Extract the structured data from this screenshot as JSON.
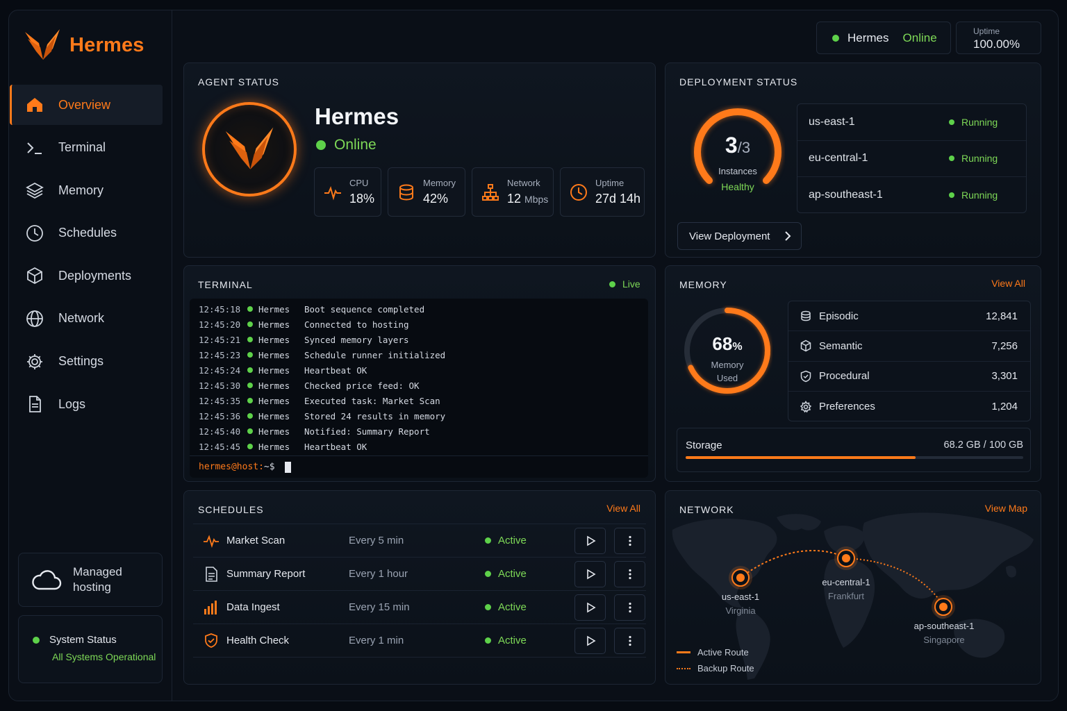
{
  "app": {
    "name": "Hermes"
  },
  "colors": {
    "accent": "#ff7a1a",
    "success": "#7ed957",
    "bg": "#070b12"
  },
  "sidebar": {
    "items": [
      {
        "label": "Overview",
        "icon": "home-icon",
        "active": true
      },
      {
        "label": "Terminal",
        "icon": "terminal-icon"
      },
      {
        "label": "Memory",
        "icon": "layers-icon"
      },
      {
        "label": "Schedules",
        "icon": "clock-icon"
      },
      {
        "label": "Deployments",
        "icon": "box-icon"
      },
      {
        "label": "Network",
        "icon": "globe-icon"
      },
      {
        "label": "Settings",
        "icon": "gear-icon"
      },
      {
        "label": "Logs",
        "icon": "file-icon"
      }
    ],
    "hosting": {
      "label": "Managed hosting",
      "icon": "cloud-icon"
    },
    "system": {
      "title": "System Status",
      "status": "All Systems Operational"
    }
  },
  "header": {
    "agent": "Hermes",
    "status": "Online",
    "uptime_label": "Uptime",
    "uptime_value": "100.00%"
  },
  "agent_status": {
    "title": "AGENT STATUS",
    "name": "Hermes",
    "status": "Online",
    "metrics": [
      {
        "label": "CPU",
        "value": "18%",
        "unit": "",
        "icon": "pulse-icon"
      },
      {
        "label": "Memory",
        "value": "42%",
        "unit": "",
        "icon": "database-icon"
      },
      {
        "label": "Network",
        "value": "12",
        "unit": "Mbps",
        "icon": "network-icon"
      },
      {
        "label": "Uptime",
        "value": "27d 14h",
        "unit": "",
        "icon": "clock-icon"
      }
    ]
  },
  "deployment": {
    "title": "DEPLOYMENT STATUS",
    "running": "3",
    "total": "/3",
    "running_count": 3,
    "total_count": 3,
    "label": "Instances",
    "health": "Healthy",
    "regions": [
      {
        "name": "us-east-1",
        "status": "Running"
      },
      {
        "name": "eu-central-1",
        "status": "Running"
      },
      {
        "name": "ap-southeast-1",
        "status": "Running"
      }
    ],
    "button": "View Deployment"
  },
  "terminal": {
    "title": "TERMINAL",
    "live": "Live",
    "lines": [
      {
        "time": "12:45:18",
        "who": "Hermes",
        "msg": "Boot sequence completed"
      },
      {
        "time": "12:45:20",
        "who": "Hermes",
        "msg": "Connected to hosting"
      },
      {
        "time": "12:45:21",
        "who": "Hermes",
        "msg": "Synced memory layers"
      },
      {
        "time": "12:45:23",
        "who": "Hermes",
        "msg": "Schedule runner initialized"
      },
      {
        "time": "12:45:24",
        "who": "Hermes",
        "msg": "Heartbeat OK"
      },
      {
        "time": "12:45:30",
        "who": "Hermes",
        "msg": "Checked price feed: OK"
      },
      {
        "time": "12:45:35",
        "who": "Hermes",
        "msg": "Executed task: Market Scan"
      },
      {
        "time": "12:45:36",
        "who": "Hermes",
        "msg": "Stored 24 results in memory"
      },
      {
        "time": "12:45:40",
        "who": "Hermes",
        "msg": "Notified: Summary Report"
      },
      {
        "time": "12:45:45",
        "who": "Hermes",
        "msg": "Heartbeat OK"
      }
    ],
    "prompt_user": "hermes@host:",
    "prompt_path": "~$"
  },
  "memory": {
    "title": "MEMORY",
    "link": "View All",
    "used_pct": "68",
    "pct_sign": "%",
    "used_fraction": 0.68,
    "used_label": "Memory",
    "used_label2": "Used",
    "items": [
      {
        "name": "Episodic",
        "count": "12,841",
        "icon": "episodic-icon"
      },
      {
        "name": "Semantic",
        "count": "7,256",
        "icon": "semantic-icon"
      },
      {
        "name": "Procedural",
        "count": "3,301",
        "icon": "procedural-icon"
      },
      {
        "name": "Preferences",
        "count": "1,204",
        "icon": "preferences-icon"
      }
    ],
    "storage_label": "Storage",
    "storage_value": "68.2 GB / 100 GB",
    "storage_fraction": 0.682
  },
  "schedules": {
    "title": "SCHEDULES",
    "link": "View All",
    "items": [
      {
        "name": "Market Scan",
        "freq": "Every 5 min",
        "status": "Active",
        "icon": "pulse-icon"
      },
      {
        "name": "Summary Report",
        "freq": "Every 1 hour",
        "status": "Active",
        "icon": "document-icon"
      },
      {
        "name": "Data Ingest",
        "freq": "Every 15 min",
        "status": "Active",
        "icon": "bar-chart-icon"
      },
      {
        "name": "Health Check",
        "freq": "Every 1 min",
        "status": "Active",
        "icon": "shield-icon"
      }
    ]
  },
  "network": {
    "title": "NETWORK",
    "link": "View Map",
    "nodes": [
      {
        "name": "us-east-1",
        "place": "Virginia"
      },
      {
        "name": "eu-central-1",
        "place": "Frankfurt"
      },
      {
        "name": "ap-southeast-1",
        "place": "Singapore"
      }
    ],
    "legend_active": "Active Route",
    "legend_backup": "Backup Route"
  }
}
